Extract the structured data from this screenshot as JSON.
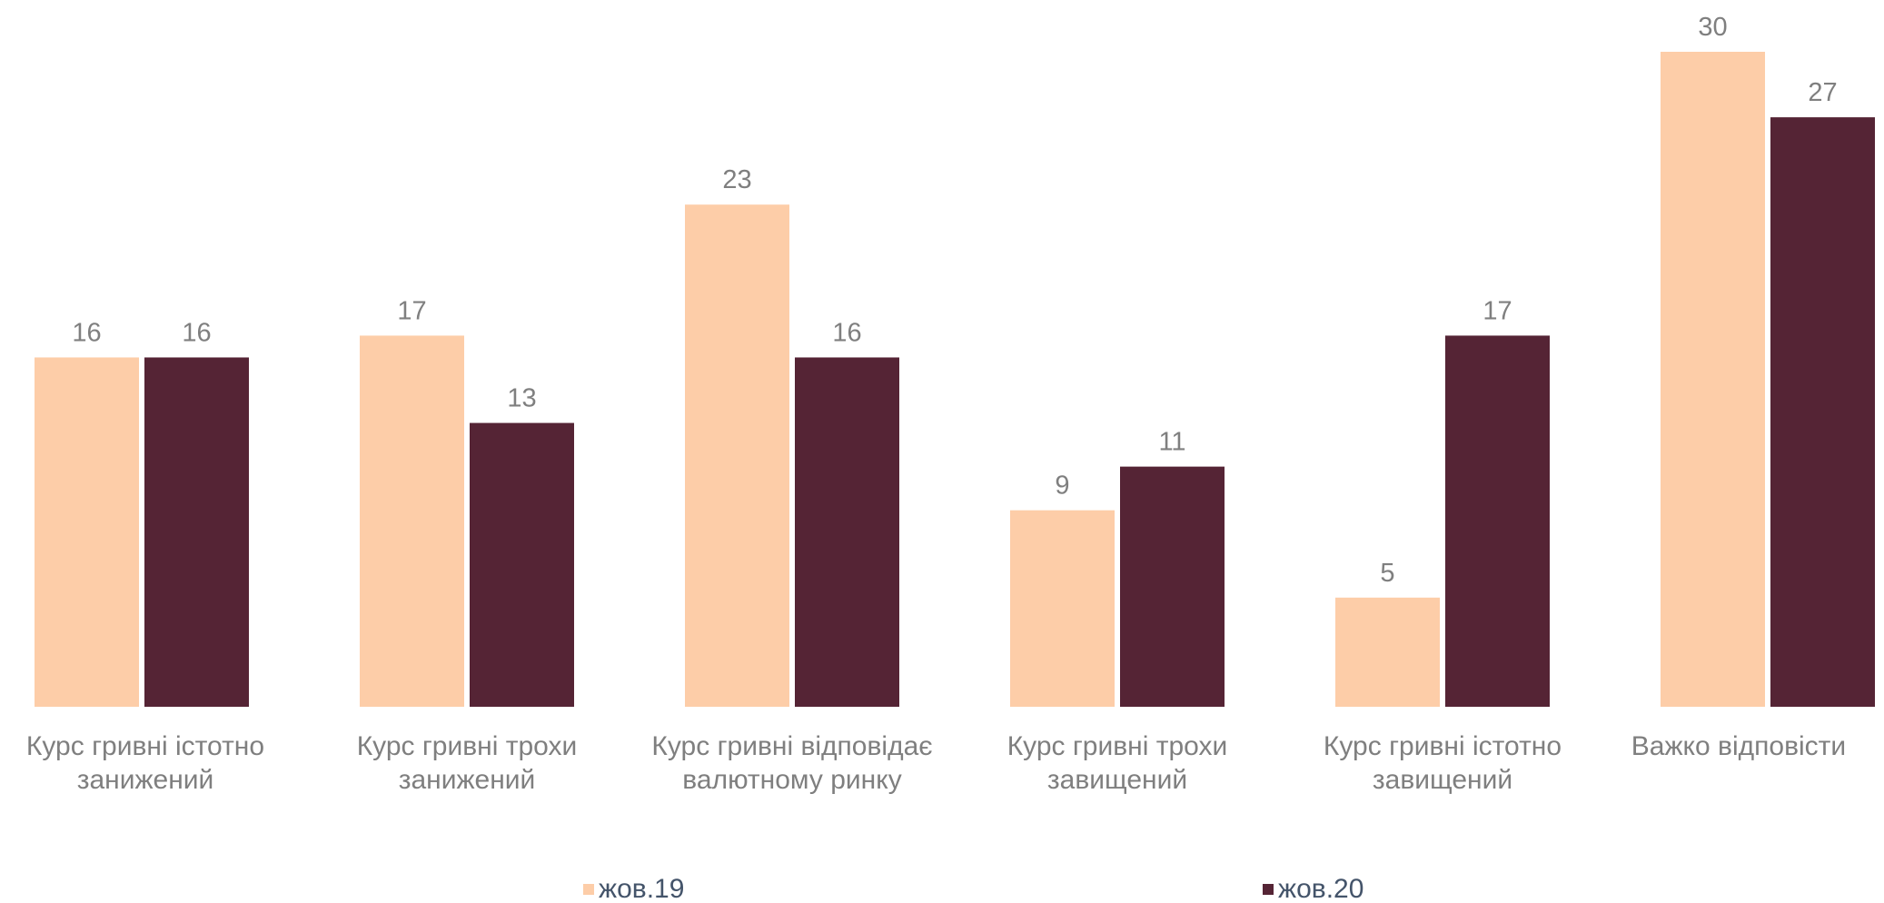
{
  "chart_data": {
    "type": "bar",
    "categories": [
      [
        "Курс гривні істотно",
        "занижений"
      ],
      [
        "Курс гривні трохи",
        "занижений"
      ],
      [
        "Курс гривні відповідає",
        "валютному ринку"
      ],
      [
        "Курс гривні трохи",
        "завищений"
      ],
      [
        "Курс гривні істотно",
        "завищений"
      ],
      [
        "Важко відповісти"
      ]
    ],
    "series": [
      {
        "name": "жов.19",
        "color": "#FDCDA8",
        "values": [
          16,
          17,
          23,
          9,
          5,
          30
        ]
      },
      {
        "name": "жов.20",
        "color": "#552435",
        "values": [
          16,
          13,
          16,
          11,
          17,
          27
        ]
      }
    ],
    "ylim": [
      0,
      30
    ],
    "data_labels": true,
    "grid": false,
    "legend": "bottom"
  }
}
